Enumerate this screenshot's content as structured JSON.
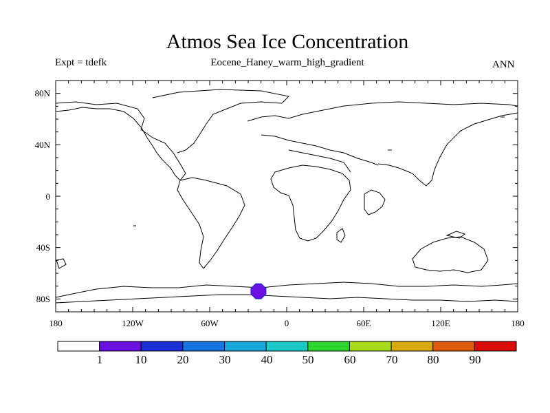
{
  "title": "Atmos Sea Ice Concentration",
  "experiment": "Expt = tdefk",
  "subtitle": "Eocene_Haney_warm_high_gradient",
  "season": "ANN",
  "map": {
    "lat_labels": [
      "80N",
      "40N",
      "0",
      "40S",
      "80S"
    ],
    "lon_labels": [
      "180",
      "120W",
      "60W",
      "0",
      "60E",
      "120E",
      "180"
    ],
    "ice_patch": {
      "lon": -22,
      "lat": -74,
      "value": 5
    }
  },
  "colorbar": {
    "labels": [
      "1",
      "10",
      "20",
      "30",
      "40",
      "50",
      "60",
      "70",
      "80",
      "90"
    ],
    "colors": [
      "#ffffff",
      "#6a10e0",
      "#1a2fd6",
      "#1672dc",
      "#18a8dc",
      "#1ac8c8",
      "#2ed52e",
      "#a8dc1a",
      "#d8aa0c",
      "#dd5a0c",
      "#dd0a0a"
    ]
  }
}
